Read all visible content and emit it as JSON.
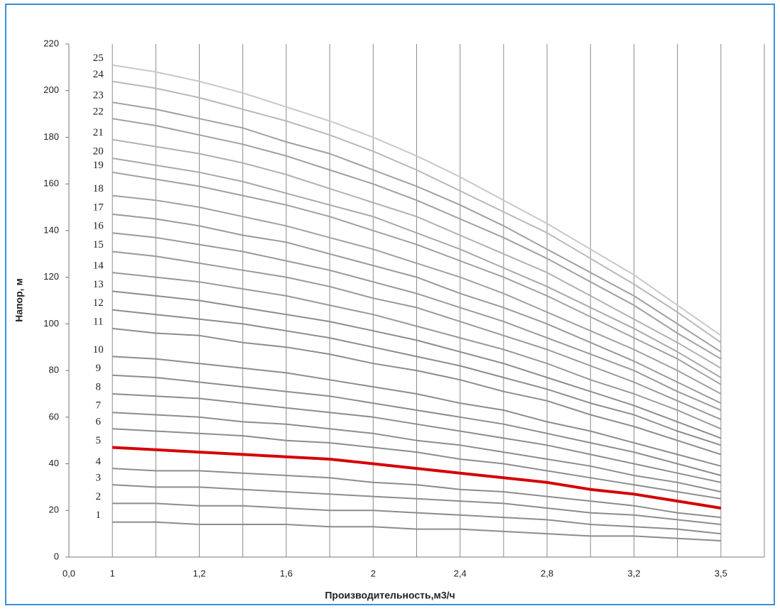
{
  "chart_data": {
    "type": "line",
    "xlabel": "Производительность,м3/ч",
    "ylabel": "Напор, м",
    "categories": [
      "0,0",
      "1",
      null,
      "1,2",
      null,
      "1,6",
      null,
      "2",
      null,
      "2,4",
      null,
      "2,8",
      null,
      "3,2",
      null,
      "3,5",
      null
    ],
    "ylim": [
      0,
      220
    ],
    "yticks": [
      0,
      20,
      40,
      60,
      80,
      100,
      120,
      140,
      160,
      180,
      200,
      220
    ],
    "grid": true,
    "series": [
      {
        "name": "1",
        "color": "#8c8c8c",
        "values": [
          null,
          15,
          15,
          14,
          14,
          14,
          13,
          13,
          12,
          12,
          11,
          10,
          9,
          9,
          8,
          7,
          null
        ]
      },
      {
        "name": "2",
        "color": "#8c8c8c",
        "values": [
          null,
          23,
          23,
          22,
          22,
          21,
          20,
          20,
          19,
          18,
          17,
          16,
          14,
          13,
          12,
          10,
          null
        ]
      },
      {
        "name": "3",
        "color": "#8c8c8c",
        "values": [
          null,
          31,
          30,
          30,
          29,
          28,
          27,
          26,
          25,
          24,
          23,
          21,
          19,
          18,
          16,
          14,
          null
        ]
      },
      {
        "name": "4",
        "color": "#8c8c8c",
        "values": [
          null,
          38,
          37,
          37,
          36,
          35,
          34,
          32,
          31,
          29,
          28,
          26,
          24,
          22,
          19,
          17,
          null
        ]
      },
      {
        "name": "5",
        "color": "#d40000",
        "values": [
          null,
          47,
          46,
          45,
          44,
          43,
          42,
          40,
          38,
          36,
          34,
          32,
          29,
          27,
          24,
          21,
          null
        ]
      },
      {
        "name": "6",
        "color": "#8c8c8c",
        "values": [
          null,
          55,
          54,
          53,
          52,
          50,
          49,
          47,
          45,
          42,
          40,
          37,
          34,
          31,
          28,
          25,
          null
        ]
      },
      {
        "name": "7",
        "color": "#8c8c8c",
        "values": [
          null,
          62,
          61,
          60,
          58,
          57,
          55,
          53,
          50,
          48,
          45,
          42,
          39,
          35,
          32,
          28,
          null
        ]
      },
      {
        "name": "8",
        "color": "#8c8c8c",
        "values": [
          null,
          70,
          69,
          68,
          66,
          64,
          62,
          60,
          57,
          54,
          51,
          48,
          44,
          40,
          36,
          32,
          null
        ]
      },
      {
        "name": "9",
        "color": "#8c8c8c",
        "values": [
          null,
          78,
          77,
          75,
          73,
          71,
          69,
          66,
          63,
          60,
          57,
          53,
          49,
          45,
          40,
          35,
          null
        ]
      },
      {
        "name": "10",
        "color": "#8c8c8c",
        "values": [
          null,
          86,
          85,
          83,
          81,
          79,
          76,
          73,
          70,
          66,
          63,
          58,
          54,
          49,
          44,
          39,
          null
        ]
      },
      {
        "name": "11",
        "color": "#8c8c8c",
        "values": [
          null,
          98,
          96,
          95,
          92,
          90,
          87,
          83,
          80,
          76,
          71,
          67,
          61,
          56,
          50,
          44,
          null
        ]
      },
      {
        "name": "12",
        "color": "#8c8c8c",
        "values": [
          null,
          106,
          104,
          102,
          100,
          97,
          94,
          90,
          86,
          82,
          77,
          72,
          66,
          61,
          54,
          48,
          null
        ]
      },
      {
        "name": "13",
        "color": "#8c8c8c",
        "values": [
          null,
          114,
          112,
          110,
          107,
          104,
          101,
          97,
          93,
          88,
          83,
          77,
          71,
          65,
          58,
          51,
          null
        ]
      },
      {
        "name": "14",
        "color": "#999999",
        "values": [
          null,
          122,
          120,
          118,
          115,
          112,
          108,
          104,
          99,
          94,
          89,
          83,
          76,
          70,
          63,
          55,
          null
        ]
      },
      {
        "name": "15",
        "color": "#999999",
        "values": [
          null,
          131,
          129,
          126,
          123,
          120,
          116,
          111,
          107,
          101,
          95,
          89,
          82,
          75,
          67,
          59,
          null
        ]
      },
      {
        "name": "16",
        "color": "#999999",
        "values": [
          null,
          139,
          137,
          134,
          131,
          127,
          123,
          118,
          113,
          107,
          101,
          94,
          87,
          80,
          71,
          63,
          null
        ]
      },
      {
        "name": "17",
        "color": "#999999",
        "values": [
          null,
          147,
          145,
          142,
          138,
          135,
          130,
          125,
          120,
          113,
          107,
          100,
          92,
          84,
          75,
          66,
          null
        ]
      },
      {
        "name": "18",
        "color": "#a0a0a0",
        "values": [
          null,
          155,
          153,
          150,
          146,
          142,
          137,
          132,
          126,
          120,
          113,
          105,
          97,
          89,
          80,
          70,
          null
        ]
      },
      {
        "name": "19",
        "color": "#a0a0a0",
        "values": [
          null,
          165,
          162,
          159,
          155,
          151,
          146,
          140,
          134,
          127,
          120,
          112,
          103,
          94,
          85,
          74,
          null
        ]
      },
      {
        "name": "20",
        "color": "#a8a8a8",
        "values": [
          null,
          171,
          168,
          165,
          161,
          156,
          151,
          146,
          139,
          132,
          124,
          116,
          107,
          98,
          88,
          77,
          null
        ]
      },
      {
        "name": "21",
        "color": "#b0b0b0",
        "values": [
          null,
          179,
          176,
          173,
          169,
          164,
          158,
          152,
          146,
          138,
          130,
          122,
          112,
          102,
          92,
          81,
          null
        ]
      },
      {
        "name": "22",
        "color": "#a0a0a0",
        "values": [
          null,
          188,
          185,
          181,
          177,
          172,
          166,
          160,
          153,
          145,
          137,
          128,
          118,
          108,
          96,
          85,
          null
        ]
      },
      {
        "name": "23",
        "color": "#a0a0a0",
        "values": [
          null,
          195,
          192,
          188,
          184,
          178,
          173,
          166,
          159,
          151,
          142,
          132,
          122,
          112,
          100,
          88,
          null
        ]
      },
      {
        "name": "24",
        "color": "#b8b8b8",
        "values": [
          null,
          204,
          201,
          197,
          192,
          187,
          181,
          174,
          166,
          157,
          148,
          139,
          128,
          117,
          105,
          92,
          null
        ]
      },
      {
        "name": "25",
        "color": "#c8c8c8",
        "values": [
          null,
          211,
          208,
          204,
          199,
          193,
          187,
          180,
          172,
          163,
          153,
          143,
          132,
          121,
          108,
          95,
          null
        ]
      }
    ]
  }
}
